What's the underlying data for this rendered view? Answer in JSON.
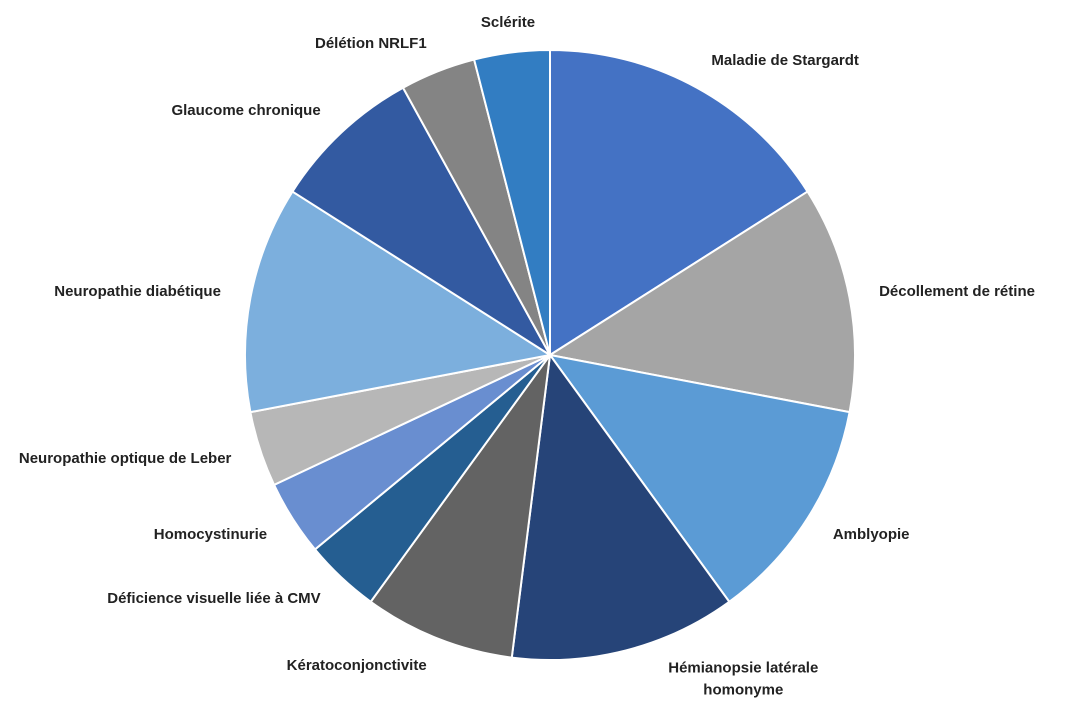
{
  "chart_data": {
    "type": "pie",
    "categories": [
      "Maladie de Stargardt",
      "Décollement de rétine",
      "Amblyopie",
      "Hémianopsie latérale homonyme",
      "Kératoconjonctivite",
      "Déficience visuelle liée à CMV",
      "Homocystinurie",
      "Neuropathie optique de Leber",
      "Neuropathie diabétique",
      "Glaucome chronique",
      "Délétion NRLF1",
      "Sclérite"
    ],
    "values": [
      4,
      3,
      3,
      3,
      2,
      1,
      1,
      1,
      3,
      2,
      1,
      1
    ],
    "colors": [
      "#4472c4",
      "#a5a5a5",
      "#5b9bd5",
      "#264478",
      "#636363",
      "#255e91",
      "#698ed0",
      "#b7b7b7",
      "#7cafdd",
      "#335aa1",
      "#848484",
      "#327dc2"
    ]
  }
}
